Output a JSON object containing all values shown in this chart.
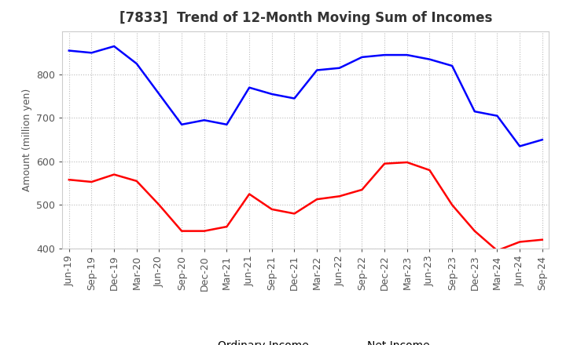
{
  "title": "[7833]  Trend of 12-Month Moving Sum of Incomes",
  "ylabel": "Amount (million yen)",
  "x_labels": [
    "Jun-19",
    "Sep-19",
    "Dec-19",
    "Mar-20",
    "Jun-20",
    "Sep-20",
    "Dec-20",
    "Mar-21",
    "Jun-21",
    "Sep-21",
    "Dec-21",
    "Mar-22",
    "Jun-22",
    "Sep-22",
    "Dec-22",
    "Mar-23",
    "Jun-23",
    "Sep-23",
    "Dec-23",
    "Mar-24",
    "Jun-24",
    "Sep-24"
  ],
  "ordinary_income": [
    855,
    850,
    865,
    825,
    755,
    685,
    695,
    685,
    770,
    755,
    745,
    810,
    815,
    840,
    845,
    845,
    835,
    820,
    715,
    705,
    635,
    650
  ],
  "net_income": [
    558,
    553,
    570,
    555,
    500,
    440,
    440,
    450,
    525,
    490,
    480,
    513,
    520,
    535,
    595,
    598,
    580,
    500,
    440,
    395,
    415,
    420
  ],
  "ordinary_color": "#0000ff",
  "net_color": "#ff0000",
  "ylim_min": 400,
  "ylim_max": 900,
  "yticks": [
    400,
    500,
    600,
    700,
    800
  ],
  "bg_color": "#ffffff",
  "grid_color": "#bbbbbb",
  "title_fontsize": 12,
  "label_fontsize": 9,
  "tick_fontsize": 9,
  "legend_fontsize": 10
}
